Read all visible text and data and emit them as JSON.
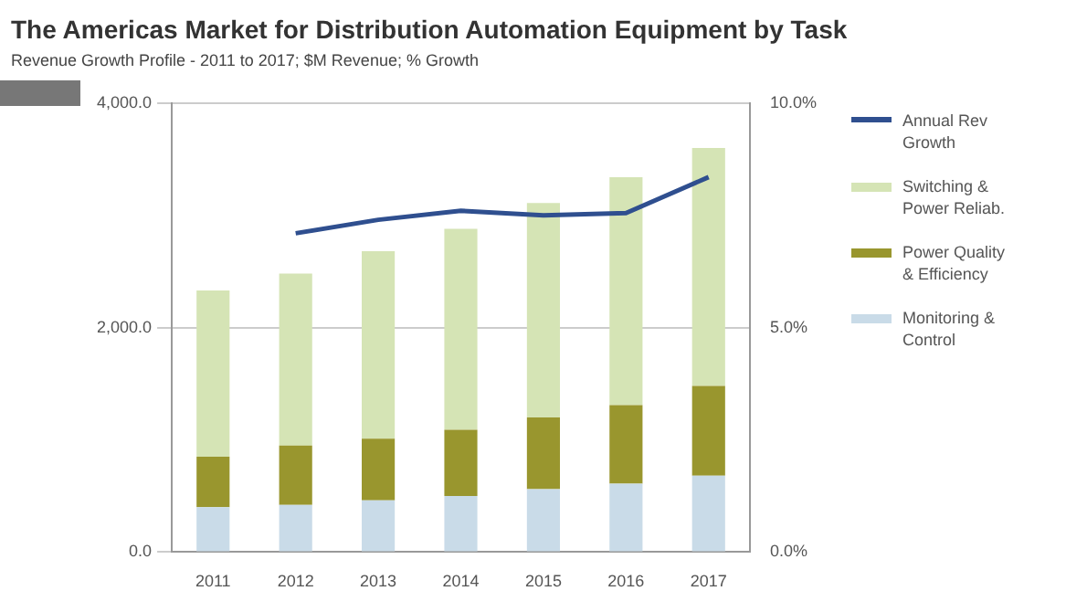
{
  "chart_data": {
    "type": "bar",
    "title": "The Americas Market for Distribution Automation Equipment by Task",
    "subtitle": "Revenue Growth Profile - 2011 to 2017; $M Revenue; % Growth",
    "categories": [
      "2011",
      "2012",
      "2013",
      "2014",
      "2015",
      "2016",
      "2017"
    ],
    "stacked": true,
    "series": [
      {
        "name": "Monitoring & Control",
        "color": "#c9dbe8",
        "values": [
          400,
          420,
          460,
          500,
          560,
          610,
          680
        ]
      },
      {
        "name": "Power Quality & Efficiency",
        "color": "#99962e",
        "values": [
          450,
          530,
          550,
          590,
          640,
          700,
          800
        ]
      },
      {
        "name": "Switching & Power Reliab.",
        "color": "#d5e4b5",
        "values": [
          1480,
          1530,
          1670,
          1790,
          1910,
          2030,
          2120
        ]
      },
      {
        "name": "Annual Rev Growth",
        "type": "line",
        "axis": "y2",
        "color": "#2f4f8f",
        "values": [
          null,
          7.1,
          7.4,
          7.6,
          7.5,
          7.55,
          8.35
        ]
      }
    ],
    "ylim": [
      0,
      4000
    ],
    "yticks": [
      {
        "value": 0,
        "label": "0.0"
      },
      {
        "value": 2000,
        "label": "2,000.0"
      },
      {
        "value": 4000,
        "label": "4,000.0"
      }
    ],
    "y2lim": [
      0,
      10
    ],
    "y2ticks": [
      {
        "value": 0,
        "label": "0.0%"
      },
      {
        "value": 5,
        "label": "5.0%"
      },
      {
        "value": 10,
        "label": "10.0%"
      }
    ],
    "grid": "y",
    "legend": "right",
    "marker": "none"
  }
}
